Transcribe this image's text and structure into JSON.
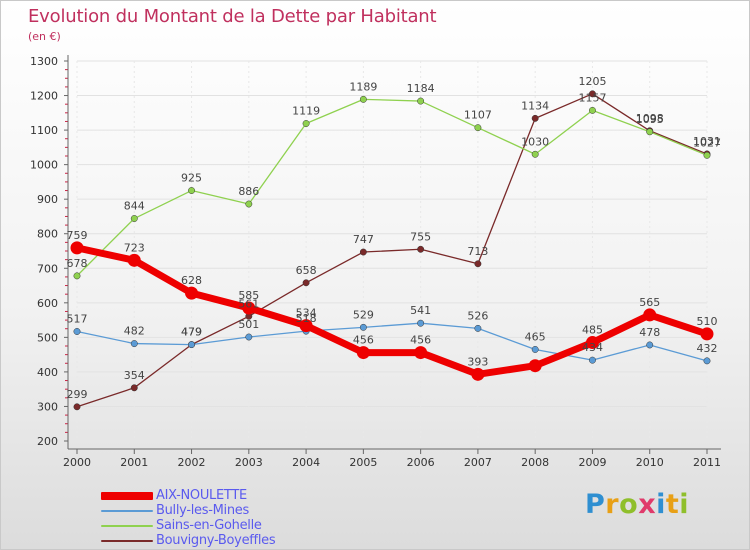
{
  "header": {
    "title": "Evolution du Montant de la Dette par Habitant",
    "unit": "(en €)"
  },
  "colors": {
    "title": "#c0305e",
    "legend_text": "#5a5aee",
    "axis": "#555555",
    "grid": "#e2e2e2"
  },
  "logo_letters": [
    "P",
    "r",
    "o",
    "x",
    "i",
    "t",
    "i"
  ],
  "chart_data": {
    "type": "line",
    "title": "Evolution du Montant de la Dette par Habitant",
    "subtitle": "(en €)",
    "xlabel": "",
    "ylabel": "",
    "x": [
      "2000",
      "2001",
      "2002",
      "2003",
      "2004",
      "2005",
      "2006",
      "2007",
      "2008",
      "2009",
      "2010",
      "2011"
    ],
    "yticks": [
      200,
      300,
      400,
      500,
      600,
      700,
      800,
      900,
      1000,
      1100,
      1200,
      1300
    ],
    "ylim": [
      200,
      1300
    ],
    "grid": true,
    "legend_position": "bottom-left",
    "series": [
      {
        "name": "AIX-NOULETTE",
        "color": "#ee0000",
        "values": [
          759,
          723,
          628,
          585,
          534,
          456,
          456,
          393,
          418,
          485,
          565,
          510
        ],
        "labels": [
          "759",
          "723",
          "628",
          "585",
          "534",
          "456",
          "456",
          "393",
          "",
          "485",
          "565",
          "510"
        ]
      },
      {
        "name": "Bully-les-Mines",
        "color": "#5b9bd5",
        "values": [
          517,
          482,
          479,
          501,
          518,
          529,
          541,
          526,
          465,
          434,
          478,
          432
        ],
        "labels": [
          "517",
          "482",
          "479",
          "501",
          "518",
          "529",
          "541",
          "526",
          "465",
          "434",
          "478",
          "432"
        ]
      },
      {
        "name": "Sains-en-Gohelle",
        "color": "#8fd14f",
        "values": [
          678,
          844,
          925,
          886,
          1119,
          1189,
          1184,
          1107,
          1030,
          1157,
          1095,
          1027
        ],
        "labels": [
          "678",
          "844",
          "925",
          "886",
          "1119",
          "1189",
          "1184",
          "1107",
          "1030",
          "1157",
          "1095",
          "1027"
        ]
      },
      {
        "name": "Bouvigny-Boyeffles",
        "color": "#7a2a2a",
        "values": [
          299,
          354,
          479,
          561,
          658,
          747,
          755,
          713,
          1134,
          1205,
          1098,
          1031
        ],
        "labels": [
          "299",
          "354",
          "479",
          "561",
          "658",
          "747",
          "755",
          "713",
          "1134",
          "1205",
          "1098",
          "1031"
        ]
      }
    ]
  }
}
